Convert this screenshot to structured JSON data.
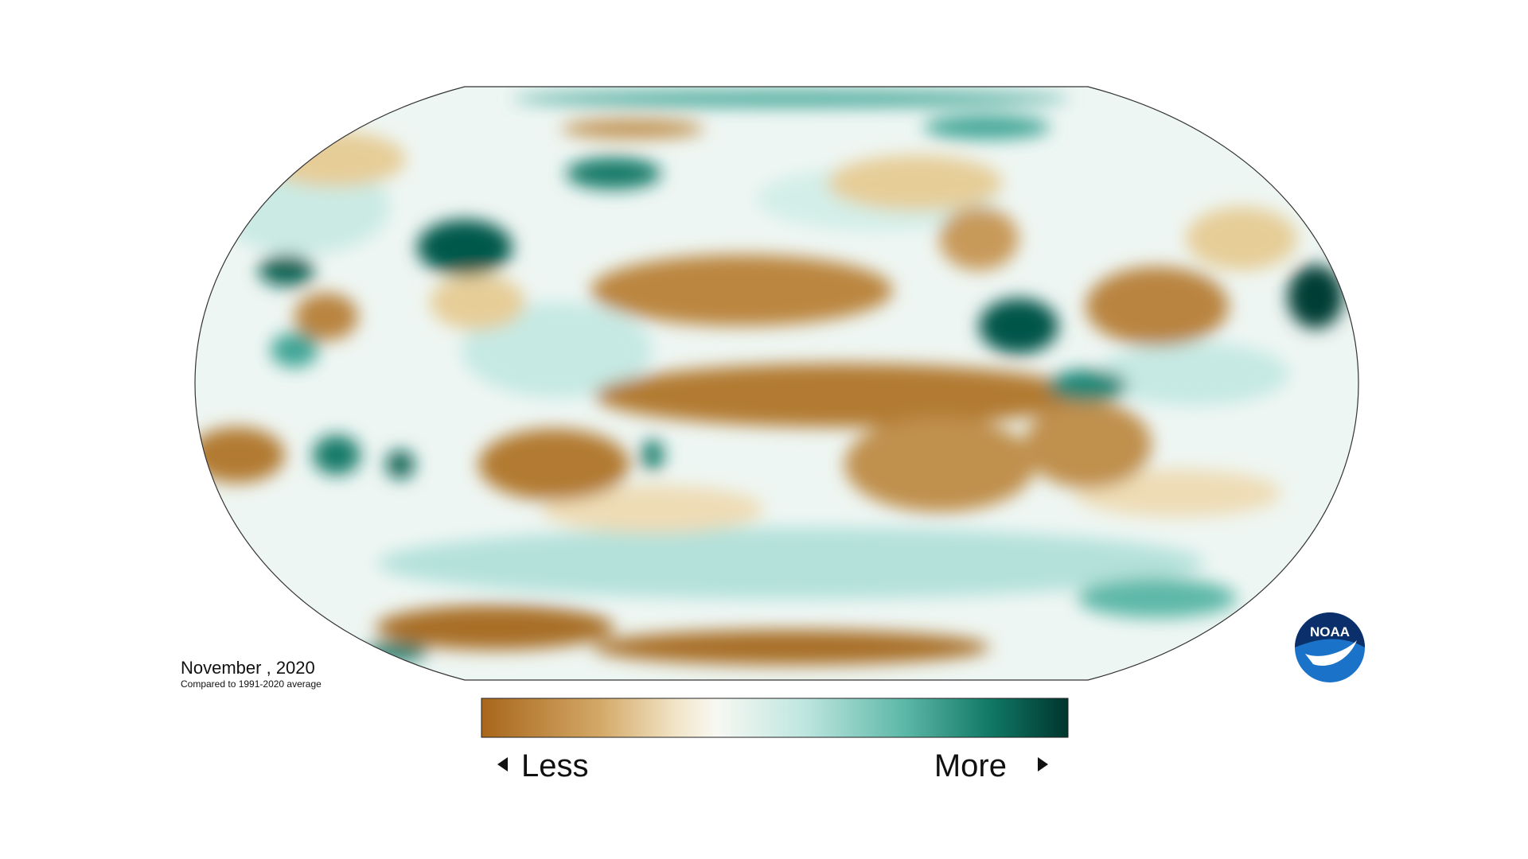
{
  "map": {
    "date_label": "November , 2020",
    "subtitle": "Compared to 1991-2020 average",
    "legend": {
      "less": "Less",
      "more": "More"
    },
    "logo": "NOAA"
  }
}
